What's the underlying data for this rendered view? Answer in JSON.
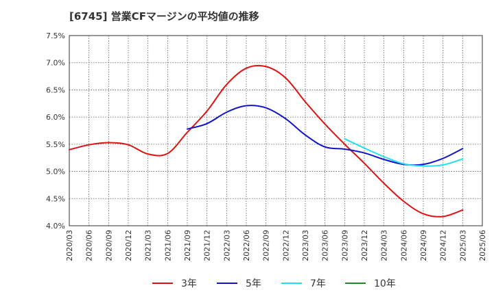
{
  "chart_data": {
    "type": "line",
    "title": "[6745]  営業CFマージンの平均値の推移",
    "xlabel": "",
    "ylabel": "",
    "y_tick_labels": [
      "4.0%",
      "4.5%",
      "5.0%",
      "5.5%",
      "6.0%",
      "6.5%",
      "7.0%",
      "7.5%"
    ],
    "y_ticks": [
      4.0,
      4.5,
      5.0,
      5.5,
      6.0,
      6.5,
      7.0,
      7.5
    ],
    "ylim": [
      4.0,
      7.5
    ],
    "x_labels": [
      "2020/03",
      "2020/06",
      "2020/09",
      "2020/12",
      "2021/03",
      "2021/06",
      "2021/09",
      "2021/12",
      "2022/03",
      "2022/06",
      "2022/09",
      "2022/12",
      "2023/03",
      "2023/06",
      "2023/09",
      "2023/12",
      "2024/03",
      "2024/06",
      "2024/09",
      "2024/12",
      "2025/03",
      "2025/06"
    ],
    "grid": true,
    "legend_position": "bottom",
    "series": [
      {
        "name": "3年",
        "color": "#dd1111",
        "values": [
          5.4,
          5.49,
          5.53,
          5.49,
          5.32,
          5.33,
          5.72,
          6.11,
          6.6,
          6.9,
          6.93,
          6.72,
          6.28,
          5.87,
          5.5,
          5.15,
          4.78,
          4.45,
          4.22,
          4.17,
          4.29,
          null
        ]
      },
      {
        "name": "5年",
        "color": "#1111cc",
        "values": [
          null,
          null,
          null,
          null,
          null,
          null,
          5.78,
          5.88,
          6.09,
          6.21,
          6.17,
          5.97,
          5.67,
          5.45,
          5.41,
          5.34,
          5.22,
          5.13,
          5.13,
          5.24,
          5.42,
          null
        ]
      },
      {
        "name": "7年",
        "color": "#22ddee",
        "values": [
          null,
          null,
          null,
          null,
          null,
          null,
          null,
          null,
          null,
          null,
          null,
          null,
          null,
          null,
          5.6,
          5.43,
          5.27,
          5.14,
          5.1,
          5.12,
          5.23,
          null
        ]
      },
      {
        "name": "10年",
        "color": "#228822",
        "values": []
      }
    ]
  }
}
